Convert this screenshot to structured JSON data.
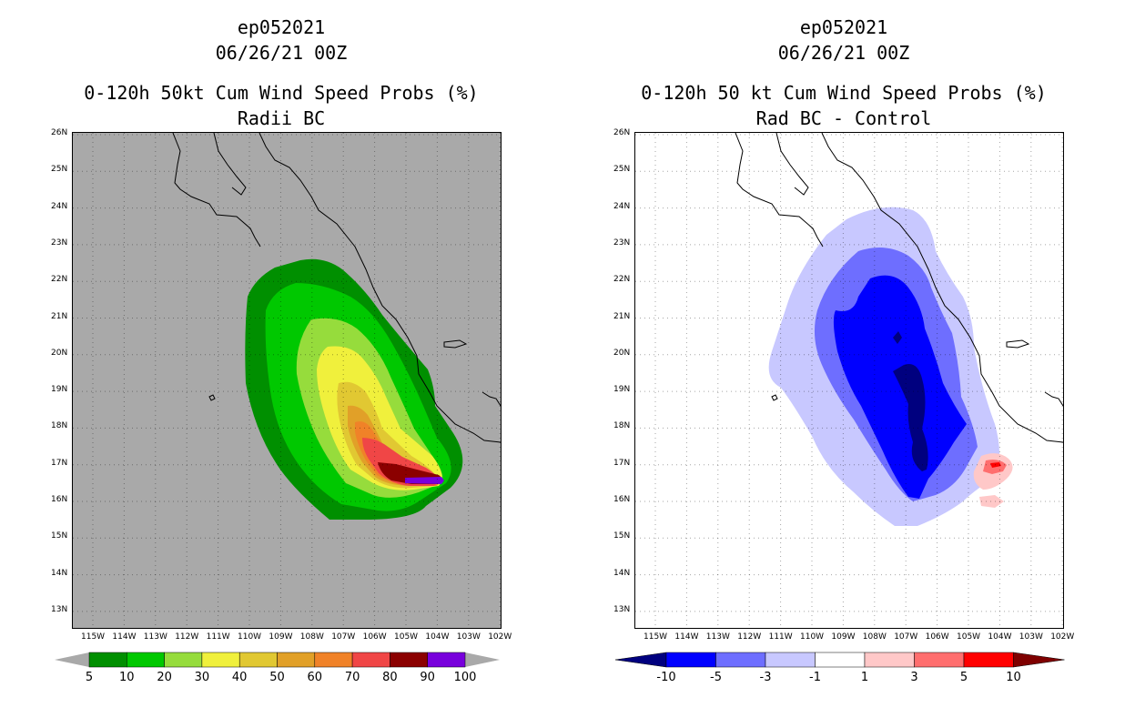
{
  "panels": [
    {
      "storm_id": "ep052021",
      "datetime": "06/26/21 00Z",
      "title": "0-120h 50kt Cum Wind Speed Probs (%)",
      "subtitle": "Radii BC",
      "background": "#a9a9a9",
      "colorbar": {
        "labels": [
          "5",
          "10",
          "20",
          "30",
          "40",
          "50",
          "60",
          "70",
          "80",
          "90",
          "100"
        ],
        "colors": [
          "#008f00",
          "#00c800",
          "#96dc3c",
          "#f0f03c",
          "#e1c832",
          "#e1a028",
          "#f08228",
          "#f04646",
          "#8b0000",
          "#7800dc"
        ]
      }
    },
    {
      "storm_id": "ep052021",
      "datetime": "06/26/21 00Z",
      "title": "0-120h 50 kt Cum Wind Speed Probs (%)",
      "subtitle": "Rad BC - Control",
      "background": "#ffffff",
      "colorbar": {
        "labels": [
          "-10",
          "-5",
          "-3",
          "-1",
          "1",
          "3",
          "5",
          "10"
        ],
        "colors": [
          "#00007f",
          "#0000ff",
          "#6e6eff",
          "#c8c8ff",
          "#ffffff",
          "#ffc8c8",
          "#ff6e6e",
          "#ff0000",
          "#7f0000"
        ]
      }
    }
  ],
  "axes": {
    "lat_labels": [
      "26N",
      "25N",
      "24N",
      "23N",
      "22N",
      "21N",
      "20N",
      "19N",
      "18N",
      "17N",
      "16N",
      "15N",
      "14N",
      "13N"
    ],
    "lon_labels": [
      "115W",
      "114W",
      "113W",
      "112W",
      "111W",
      "110W",
      "109W",
      "108W",
      "107W",
      "106W",
      "105W",
      "104W",
      "103W",
      "102W"
    ]
  }
}
